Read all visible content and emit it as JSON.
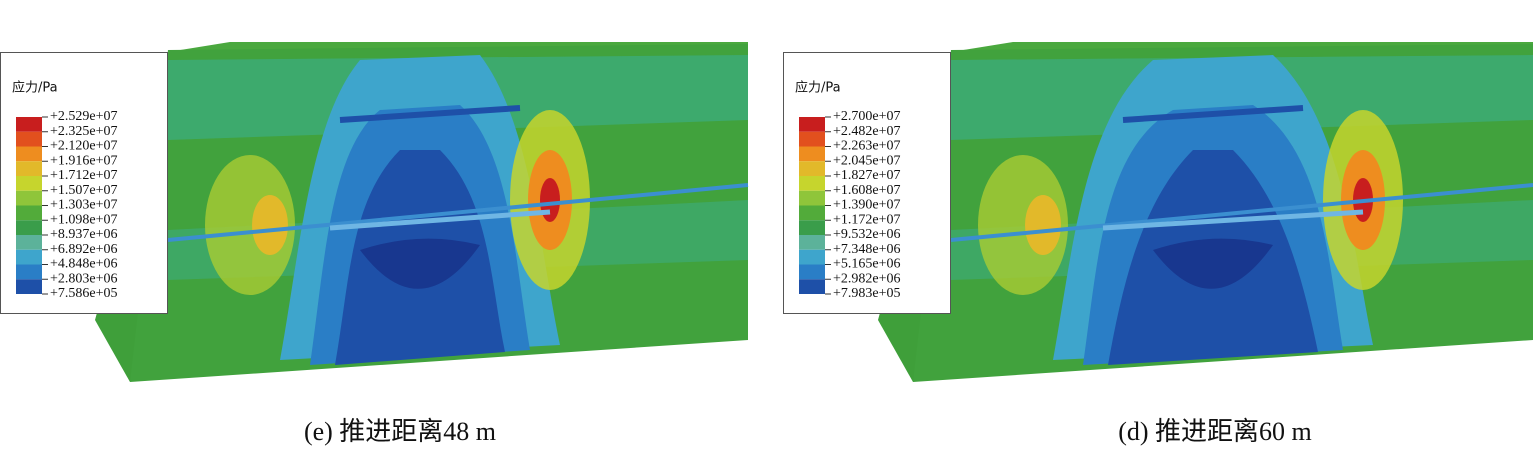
{
  "panels": [
    {
      "legend": {
        "title": "应力/Pa",
        "labels": [
          "+2.529e+07",
          "+2.325e+07",
          "+2.120e+07",
          "+1.916e+07",
          "+1.712e+07",
          "+1.507e+07",
          "+1.303e+07",
          "+1.098e+07",
          "+8.937e+06",
          "+6.892e+06",
          "+4.848e+06",
          "+2.803e+06",
          "+7.586e+05"
        ]
      },
      "caption": "(e) 推进距离48 m"
    },
    {
      "legend": {
        "title": "应力/Pa",
        "labels": [
          "+2.700e+07",
          "+2.482e+07",
          "+2.263e+07",
          "+2.045e+07",
          "+1.827e+07",
          "+1.608e+07",
          "+1.390e+07",
          "+1.172e+07",
          "+9.532e+06",
          "+7.348e+06",
          "+5.165e+06",
          "+2.982e+06",
          "+7.983e+05"
        ]
      },
      "caption": "(d) 推进距离60 m"
    }
  ]
}
